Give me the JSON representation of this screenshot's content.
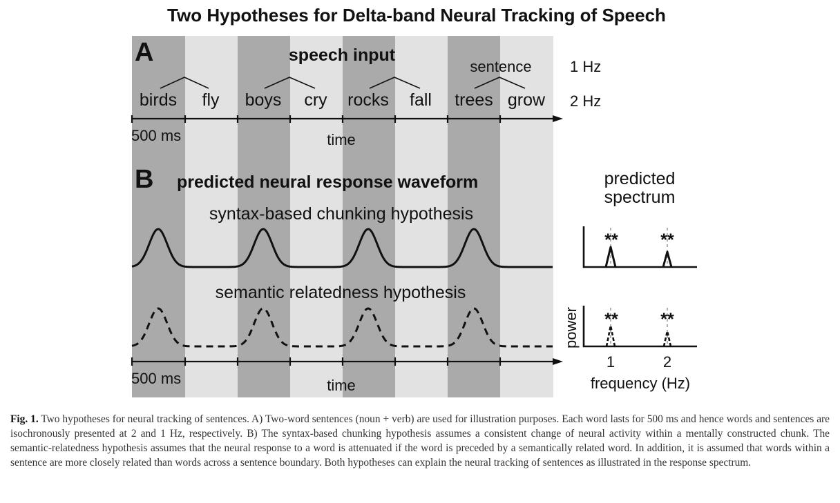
{
  "title": "Two Hypotheses for Delta-band Neural Tracking of Speech",
  "panel_a": {
    "letter": "A",
    "heading": "speech input",
    "words": [
      "birds",
      "fly",
      "boys",
      "cry",
      "rocks",
      "fall",
      "trees",
      "grow"
    ],
    "sentence_label": "sentence",
    "rate_sentence": "1 Hz",
    "rate_word": "2 Hz",
    "scale_label": "500 ms",
    "axis_label": "time"
  },
  "panel_b": {
    "letter": "B",
    "heading": "predicted neural response waveform",
    "syntax_label": "syntax-based chunking hypothesis",
    "semantic_label": "semantic relatedness hypothesis",
    "scale_label": "500 ms",
    "axis_label": "time",
    "spectrum_title_1": "predicted",
    "spectrum_title_2": "spectrum",
    "significance_1": "**",
    "significance_2": "**",
    "significance_3": "**",
    "significance_4": "**",
    "power_label": "power",
    "freq_tick_1": "1",
    "freq_tick_2": "2",
    "freq_label": "frequency (Hz)"
  },
  "colors": {
    "dark_band": "#aaaaaa",
    "light_band": "#e2e2e2",
    "ink": "#111111"
  },
  "caption": {
    "label": "Fig. 1.",
    "text": "Two hypotheses for neural tracking of sentences. A) Two-word sentences (noun + verb) are used for illustration purposes. Each word lasts for 500 ms and hence words and sentences are isochronously presented at 2 and 1 Hz, respectively. B) The syntax-based chunking hypothesis assumes a consistent change of neural activity within a mentally constructed chunk. The semantic-relatedness hypothesis assumes that the neural response to a word is attenuated if the word is preceded by a semantically related word. In addition, it is assumed that words within a sentence are more closely related than words across a sentence boundary. Both hypotheses can explain the neural tracking of sentences as illustrated in the response spectrum."
  }
}
